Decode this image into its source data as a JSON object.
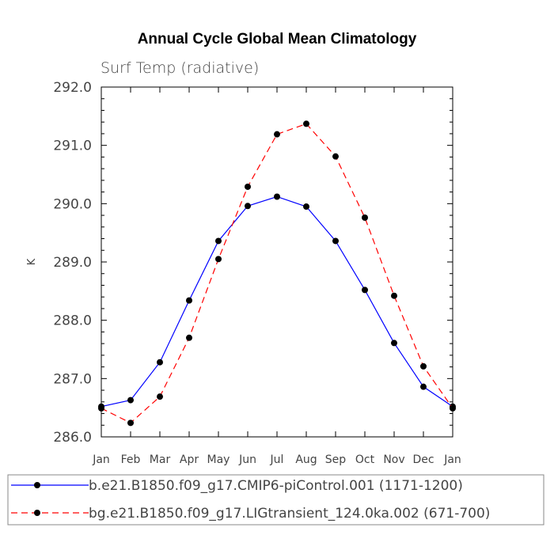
{
  "chart_data": {
    "type": "line",
    "title": "Annual Cycle Global Mean Climatology",
    "subtitle": "Surf Temp (radiative)",
    "ylabel": "K",
    "xlabel": "",
    "ylim": [
      286.0,
      292.0
    ],
    "yticks": [
      "286.0",
      "287.0",
      "288.0",
      "289.0",
      "290.0",
      "291.0",
      "292.0"
    ],
    "categories": [
      "Jan",
      "Feb",
      "Mar",
      "Apr",
      "May",
      "Jun",
      "Jul",
      "Aug",
      "Sep",
      "Oct",
      "Nov",
      "Dec",
      "Jan"
    ],
    "series": [
      {
        "name": "b.e21.B1850.f09_g17.CMIP6-piControl.001 (1171-1200)",
        "color": "#0000ff",
        "dash": "solid",
        "values": [
          286.52,
          286.63,
          287.28,
          288.34,
          289.36,
          289.96,
          290.12,
          289.95,
          289.36,
          288.52,
          287.61,
          286.86,
          286.52
        ]
      },
      {
        "name": "bg.e21.B1850.f09_g17.LIGtransient_124.0ka.002 (671-700)",
        "color": "#ff0000",
        "dash": "dashed",
        "values": [
          286.49,
          286.24,
          286.69,
          287.7,
          289.05,
          290.29,
          291.19,
          291.37,
          290.81,
          289.76,
          288.42,
          287.21,
          286.49
        ]
      }
    ],
    "legend_position": "bottom",
    "grid": false
  }
}
